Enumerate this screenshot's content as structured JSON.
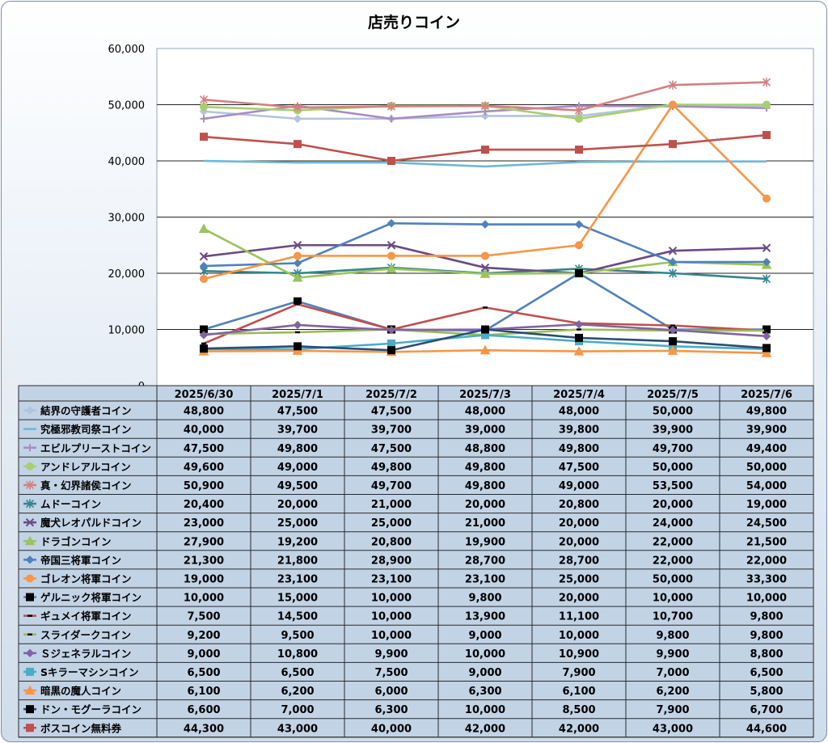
{
  "chart_data": {
    "type": "line",
    "title": "店売りコイン",
    "categories": [
      "2025/6/30",
      "2025/7/1",
      "2025/7/2",
      "2025/7/3",
      "2025/7/4",
      "2025/7/5",
      "2025/7/6"
    ],
    "y_ticks": [
      "0",
      "10,000",
      "20,000",
      "30,000",
      "40,000",
      "50,000",
      "60,000"
    ],
    "ylim": [
      0,
      60000
    ],
    "grid": "horizontal",
    "legend": "data table below chart",
    "series": [
      {
        "name": "結界の守護者コイン",
        "color": "#b4c3de",
        "marker": "diamond",
        "values": [
          48800,
          47500,
          47500,
          48000,
          48000,
          50000,
          49800
        ],
        "labels": [
          "48,800",
          "47,500",
          "47,500",
          "48,000",
          "48,000",
          "50,000",
          "49,800"
        ]
      },
      {
        "name": "究極邪教司祭コイン",
        "color": "#6fb8d4",
        "marker": "none",
        "values": [
          40000,
          39700,
          39700,
          39000,
          39800,
          39900,
          39900
        ],
        "labels": [
          "40,000",
          "39,700",
          "39,700",
          "39,000",
          "39,800",
          "39,900",
          "39,900"
        ]
      },
      {
        "name": "エビルプリーストコイン",
        "color": "#a98bc4",
        "marker": "plus",
        "values": [
          47500,
          49800,
          47500,
          48800,
          49800,
          49700,
          49400
        ],
        "labels": [
          "47,500",
          "49,800",
          "47,500",
          "48,800",
          "49,800",
          "49,700",
          "49,400"
        ]
      },
      {
        "name": "アンドレアルコイン",
        "color": "#a8cf6f",
        "marker": "circle",
        "values": [
          49600,
          49000,
          49800,
          49800,
          47500,
          50000,
          50000
        ],
        "labels": [
          "49,600",
          "49,000",
          "49,800",
          "49,800",
          "47,500",
          "50,000",
          "50,000"
        ]
      },
      {
        "name": "真・幻界諸侯コイン",
        "color": "#d48080",
        "marker": "star",
        "values": [
          50900,
          49500,
          49700,
          49800,
          49000,
          53500,
          54000
        ],
        "labels": [
          "50,900",
          "49,500",
          "49,700",
          "49,800",
          "49,000",
          "53,500",
          "54,000"
        ]
      },
      {
        "name": "ムドーコイン",
        "color": "#35848e",
        "marker": "star",
        "values": [
          20400,
          20000,
          21000,
          20000,
          20800,
          20000,
          19000
        ],
        "labels": [
          "20,400",
          "20,000",
          "21,000",
          "20,000",
          "20,800",
          "20,000",
          "19,000"
        ]
      },
      {
        "name": "魔犬レオパルドコイン",
        "color": "#6a4a86",
        "marker": "x",
        "values": [
          23000,
          25000,
          25000,
          21000,
          20000,
          24000,
          24500
        ],
        "labels": [
          "23,000",
          "25,000",
          "25,000",
          "21,000",
          "20,000",
          "24,000",
          "24,500"
        ]
      },
      {
        "name": "ドラゴンコイン",
        "color": "#9ac45a",
        "marker": "triangle",
        "values": [
          27900,
          19200,
          20800,
          19900,
          20000,
          22000,
          21500
        ],
        "labels": [
          "27,900",
          "19,200",
          "20,800",
          "19,900",
          "20,000",
          "22,000",
          "21,500"
        ]
      },
      {
        "name": "帝国三将軍コイン",
        "color": "#4f81bd",
        "marker": "diamond",
        "values": [
          21300,
          21800,
          28900,
          28700,
          28700,
          22000,
          22000
        ],
        "labels": [
          "21,300",
          "21,800",
          "28,900",
          "28,700",
          "28,700",
          "22,000",
          "22,000"
        ]
      },
      {
        "name": "ゴレオン将軍コイン",
        "color": "#f79646",
        "marker": "circle",
        "values": [
          19000,
          23100,
          23100,
          23100,
          25000,
          50000,
          33300
        ],
        "labels": [
          "19,000",
          "23,100",
          "23,100",
          "23,100",
          "25,000",
          "50,000",
          "33,300"
        ]
      },
      {
        "name": "ゲルニック将軍コイン",
        "color": "#4f81bd",
        "marker": "square-black",
        "values": [
          10000,
          15000,
          10000,
          9800,
          20000,
          10000,
          10000
        ],
        "labels": [
          "10,000",
          "15,000",
          "10,000",
          "9,800",
          "20,000",
          "10,000",
          "10,000"
        ]
      },
      {
        "name": "ギュメイ将軍コイン",
        "color": "#c0504d",
        "marker": "dash-black",
        "values": [
          7500,
          14500,
          10000,
          13900,
          11100,
          10700,
          9800
        ],
        "labels": [
          "7,500",
          "14,500",
          "10,000",
          "13,900",
          "11,100",
          "10,700",
          "9,800"
        ]
      },
      {
        "name": "スライダークコイン",
        "color": "#9bbb59",
        "marker": "dash-black",
        "values": [
          9200,
          9500,
          10000,
          9000,
          10000,
          9800,
          9800
        ],
        "labels": [
          "9,200",
          "9,500",
          "10,000",
          "9,000",
          "10,000",
          "9,800",
          "9,800"
        ]
      },
      {
        "name": "Ｓジェネラルコイン",
        "color": "#8064a2",
        "marker": "diamond",
        "values": [
          9000,
          10800,
          9900,
          10000,
          10900,
          9900,
          8800
        ],
        "labels": [
          "9,000",
          "10,800",
          "9,900",
          "10,000",
          "10,900",
          "9,900",
          "8,800"
        ]
      },
      {
        "name": "Sキラーマシンコイン",
        "color": "#4bacc6",
        "marker": "square",
        "values": [
          6500,
          6500,
          7500,
          9000,
          7900,
          7000,
          6500
        ],
        "labels": [
          "6,500",
          "6,500",
          "7,500",
          "9,000",
          "7,900",
          "7,000",
          "6,500"
        ]
      },
      {
        "name": "暗黒の魔人コイン",
        "color": "#f79646",
        "marker": "triangle",
        "values": [
          6100,
          6200,
          6000,
          6300,
          6100,
          6200,
          5800
        ],
        "labels": [
          "6,100",
          "6,200",
          "6,000",
          "6,300",
          "6,100",
          "6,200",
          "5,800"
        ]
      },
      {
        "name": "ドン・モグーラコイン",
        "color": "#2c4d75",
        "marker": "square-black",
        "values": [
          6600,
          7000,
          6300,
          10000,
          8500,
          7900,
          6700
        ],
        "labels": [
          "6,600",
          "7,000",
          "6,300",
          "10,000",
          "8,500",
          "7,900",
          "6,700"
        ]
      },
      {
        "name": "ボスコイン無料券",
        "color": "#c0504d",
        "marker": "square",
        "values": [
          44300,
          43000,
          40000,
          42000,
          42000,
          43000,
          44600
        ],
        "labels": [
          "44,300",
          "43,000",
          "40,000",
          "42,000",
          "42,000",
          "43,000",
          "44,600"
        ]
      }
    ]
  }
}
